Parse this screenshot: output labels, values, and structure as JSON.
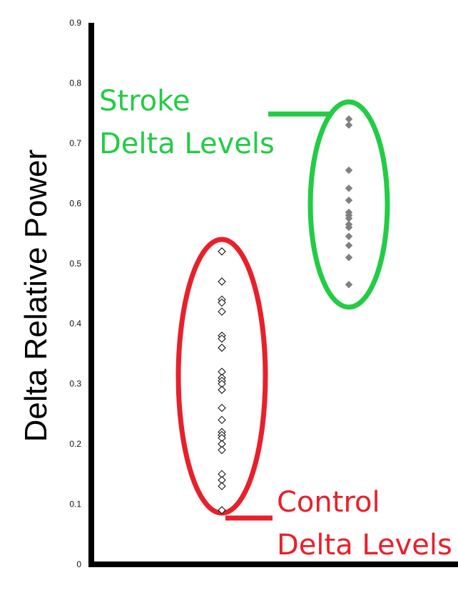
{
  "chart_data": {
    "type": "scatter",
    "ylabel": "Delta Relative Power",
    "ylim": [
      0,
      0.9
    ],
    "yticks": [
      "0",
      "0.1",
      "0.2",
      "0.3",
      "0.4",
      "0.5",
      "0.6",
      "0.7",
      "0.8",
      "0.9"
    ],
    "grid": false,
    "series": [
      {
        "name": "Control Delta Levels",
        "marker": "open-diamond",
        "color": "#000000",
        "values": [
          0.52,
          0.47,
          0.44,
          0.435,
          0.42,
          0.38,
          0.375,
          0.36,
          0.32,
          0.31,
          0.305,
          0.3,
          0.29,
          0.26,
          0.24,
          0.22,
          0.215,
          0.21,
          0.2,
          0.19,
          0.15,
          0.14,
          0.13,
          0.09
        ]
      },
      {
        "name": "Stroke Delta Levels",
        "marker": "filled-diamond",
        "color": "#808080",
        "values": [
          0.74,
          0.73,
          0.655,
          0.625,
          0.605,
          0.585,
          0.58,
          0.575,
          0.565,
          0.56,
          0.545,
          0.53,
          0.51,
          0.465
        ]
      }
    ],
    "annotations": [
      {
        "text_lines": [
          "Stroke",
          "Delta Levels"
        ],
        "color": "#22cc44",
        "target": "Stroke Delta Levels"
      },
      {
        "text_lines": [
          "Control",
          "Delta Levels"
        ],
        "color": "#e8202a",
        "target": "Control Delta Levels"
      }
    ]
  }
}
